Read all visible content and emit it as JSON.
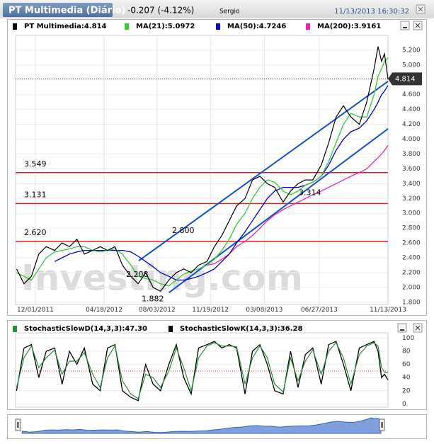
{
  "header": {
    "title": "PT Multimedia (Diário)",
    "change": "-0.207 (-4.12%)",
    "user": "Sergio",
    "timestamp": "11/13/2013 16:30:32"
  },
  "watermark": "Investing.com",
  "chart_data": [
    {
      "type": "line",
      "x": [
        "10/24/2011",
        "11/08/2011",
        "11/23/2011",
        "12/08/2011",
        "12/23/2011",
        "01/09/2012",
        "01/24/2012",
        "02/08/2012",
        "02/23/2012",
        "03/09/2012",
        "03/26/2012",
        "04/10/2012",
        "04/25/2012",
        "05/10/2012",
        "05/25/2012",
        "06/11/2012",
        "06/26/2012",
        "07/11/2012",
        "07/26/2012",
        "08/10/2012",
        "08/27/2012",
        "09/11/2012",
        "09/26/2012",
        "10/11/2012",
        "10/26/2012",
        "11/12/2012",
        "11/27/2012",
        "12/12/2012",
        "12/27/2012",
        "01/11/2013",
        "01/28/2013",
        "02/12/2013",
        "02/27/2013",
        "03/14/2013",
        "03/29/2013",
        "04/15/2013",
        "04/30/2013",
        "05/15/2013",
        "05/30/2013",
        "06/14/2013",
        "07/01/2013",
        "07/16/2013",
        "07/31/2013",
        "08/15/2013",
        "08/30/2013",
        "09/16/2013",
        "10/01/2013",
        "10/16/2013",
        "10/24/2013",
        "10/31/2013",
        "11/06/2013",
        "11/13/2013"
      ],
      "series": [
        {
          "name": "PT Multimedia:4.814",
          "color": "#000000",
          "values": [
            2.25,
            2.05,
            2.15,
            2.45,
            2.55,
            2.5,
            2.6,
            2.55,
            2.65,
            2.45,
            2.5,
            2.55,
            2.5,
            2.55,
            2.3,
            2.15,
            2.05,
            2.2,
            2.0,
            1.95,
            2.1,
            2.2,
            2.25,
            2.2,
            2.3,
            2.35,
            2.55,
            2.7,
            2.9,
            3.1,
            3.2,
            3.45,
            3.5,
            3.4,
            3.35,
            3.15,
            3.3,
            3.4,
            3.45,
            3.45,
            3.65,
            3.95,
            4.3,
            4.45,
            4.3,
            4.2,
            4.5,
            4.95,
            5.25,
            5.05,
            5.15,
            4.814
          ]
        },
        {
          "name": "MA(21):5.0972",
          "color": "#33cc33",
          "values": [
            2.2,
            2.15,
            2.1,
            2.25,
            2.4,
            2.48,
            2.5,
            2.52,
            2.55,
            2.55,
            2.5,
            2.48,
            2.5,
            2.52,
            2.45,
            2.3,
            2.15,
            2.12,
            2.1,
            2.05,
            2.02,
            2.1,
            2.18,
            2.22,
            2.25,
            2.3,
            2.38,
            2.5,
            2.65,
            2.85,
            3.0,
            3.2,
            3.35,
            3.45,
            3.42,
            3.3,
            3.25,
            3.3,
            3.38,
            3.42,
            3.5,
            3.7,
            3.95,
            4.2,
            4.35,
            4.3,
            4.3,
            4.6,
            4.85,
            4.95,
            5.05,
            5.0972
          ]
        },
        {
          "name": "MA(50):4.7246",
          "color": "#0000cc",
          "values": [
            null,
            null,
            null,
            null,
            null,
            2.35,
            2.4,
            2.45,
            2.48,
            2.5,
            2.5,
            2.5,
            2.5,
            2.5,
            2.5,
            2.48,
            2.42,
            2.35,
            2.28,
            2.2,
            2.15,
            2.1,
            2.1,
            2.12,
            2.15,
            2.2,
            2.25,
            2.35,
            2.45,
            2.6,
            2.75,
            2.9,
            3.05,
            3.2,
            3.3,
            3.35,
            3.35,
            3.35,
            3.38,
            3.42,
            3.5,
            3.65,
            3.85,
            4.0,
            4.1,
            4.15,
            4.25,
            4.4,
            4.5,
            4.6,
            4.65,
            4.7246
          ]
        },
        {
          "name": "MA(200):3.9161",
          "color": "#ee22aa",
          "values": [
            null,
            null,
            null,
            null,
            null,
            null,
            null,
            null,
            null,
            null,
            null,
            null,
            null,
            null,
            null,
            null,
            null,
            null,
            null,
            null,
            null,
            null,
            null,
            null,
            null,
            2.3,
            2.32,
            2.38,
            2.45,
            2.55,
            2.62,
            2.7,
            2.8,
            2.9,
            2.98,
            3.05,
            3.1,
            3.15,
            3.2,
            3.25,
            3.3,
            3.35,
            3.4,
            3.45,
            3.5,
            3.55,
            3.6,
            3.7,
            3.75,
            3.8,
            3.85,
            3.9161
          ]
        }
      ],
      "xlim": [
        "10/22/2011",
        "11/13/2013"
      ],
      "xticks": [
        "12/01/2011",
        "04/18/2012",
        "08/03/2012",
        "11/19/2012",
        "03/08/2013",
        "06/27/2013",
        "11/13/2013"
      ],
      "ylim": [
        1.77,
        5.4
      ],
      "yticks": [
        {
          "value": 1.8,
          "label": "1.800"
        },
        {
          "value": 2.0,
          "label": "2.000"
        },
        {
          "value": 2.2,
          "label": "2.200"
        },
        {
          "value": 2.4,
          "label": "2.400"
        },
        {
          "value": 2.6,
          "label": "2.600"
        },
        {
          "value": 2.8,
          "label": "2.800"
        },
        {
          "value": 3.0,
          "label": "3.000"
        },
        {
          "value": 3.2,
          "label": "3.200"
        },
        {
          "value": 3.4,
          "label": "3.400"
        },
        {
          "value": 3.6,
          "label": "3.600"
        },
        {
          "value": 3.8,
          "label": "3.800"
        },
        {
          "value": 4.0,
          "label": "4.000"
        },
        {
          "value": 4.2,
          "label": "4.200"
        },
        {
          "value": 4.4,
          "label": "4.400"
        },
        {
          "value": 4.6,
          "label": "4.600"
        },
        {
          "value": 4.8,
          "label": "4.800"
        },
        {
          "value": 5.0,
          "label": "5.000"
        },
        {
          "value": 5.2,
          "label": "5.200"
        }
      ],
      "grid": true,
      "levels": [
        {
          "value": 3.549,
          "label": "3.549",
          "color": "#e02020"
        },
        {
          "value": 3.131,
          "label": "3.131",
          "color": "#e02020"
        },
        {
          "value": 2.62,
          "label": "2.620",
          "color": "#e02020"
        }
      ],
      "annotations": [
        {
          "value": 2.8,
          "label": "2.800"
        },
        {
          "value": 3.314,
          "label": "3.314"
        },
        {
          "value": 1.882,
          "label": "1.882"
        },
        {
          "value": 2.208,
          "label": "2.208"
        }
      ],
      "trendlines": [
        {
          "color": "#1050d0",
          "start": [
            "06/27/2012",
            2.36
          ],
          "end": [
            "11/13/2013",
            4.78
          ]
        },
        {
          "color": "#1050d0",
          "start": [
            "08/27/2012",
            1.93
          ],
          "end": [
            "11/13/2013",
            4.14
          ]
        }
      ],
      "last_price": {
        "value": 4.814,
        "label": "4.814"
      }
    },
    {
      "type": "line",
      "x": [
        "10/24/2011",
        "11/08/2011",
        "11/23/2011",
        "12/08/2011",
        "12/23/2011",
        "01/09/2012",
        "01/24/2012",
        "02/08/2012",
        "02/23/2012",
        "03/09/2012",
        "03/26/2012",
        "04/10/2012",
        "04/25/2012",
        "05/10/2012",
        "05/25/2012",
        "06/11/2012",
        "06/26/2012",
        "07/11/2012",
        "07/26/2012",
        "08/10/2012",
        "08/27/2012",
        "09/11/2012",
        "09/26/2012",
        "10/11/2012",
        "10/26/2012",
        "11/12/2012",
        "11/27/2012",
        "12/12/2012",
        "12/27/2012",
        "01/11/2013",
        "01/28/2013",
        "02/12/2013",
        "02/27/2013",
        "03/14/2013",
        "03/29/2013",
        "04/15/2013",
        "04/30/2013",
        "05/15/2013",
        "05/30/2013",
        "06/14/2013",
        "07/01/2013",
        "07/16/2013",
        "07/31/2013",
        "08/15/2013",
        "08/30/2013",
        "09/16/2013",
        "10/01/2013",
        "10/16/2013",
        "10/24/2013",
        "10/31/2013",
        "11/06/2013",
        "11/13/2013"
      ],
      "series": [
        {
          "name": "StochasticSlowD(14,3,3):47.30",
          "color": "#2e8b3e",
          "values": [
            25,
            70,
            88,
            55,
            70,
            82,
            45,
            65,
            65,
            78,
            45,
            25,
            70,
            88,
            35,
            15,
            8,
            45,
            40,
            25,
            50,
            85,
            55,
            20,
            70,
            88,
            93,
            88,
            88,
            87,
            30,
            70,
            88,
            70,
            30,
            18,
            70,
            35,
            65,
            82,
            45,
            80,
            93,
            70,
            30,
            75,
            88,
            93,
            88,
            55,
            48,
            47.3
          ]
        },
        {
          "name": "StochasticSlowK(14,3,3):36.28",
          "color": "#000000",
          "values": [
            20,
            85,
            90,
            40,
            80,
            85,
            30,
            80,
            60,
            85,
            30,
            20,
            85,
            90,
            20,
            10,
            5,
            60,
            30,
            20,
            60,
            90,
            40,
            15,
            85,
            90,
            95,
            85,
            90,
            85,
            15,
            80,
            90,
            60,
            20,
            15,
            80,
            25,
            75,
            85,
            30,
            90,
            95,
            60,
            20,
            85,
            90,
            95,
            80,
            40,
            45,
            36.28
          ]
        }
      ],
      "xlim": [
        "10/22/2011",
        "11/13/2013"
      ],
      "ylim": [
        -5,
        108
      ],
      "yticks": [
        0,
        20,
        40,
        60,
        80,
        100
      ],
      "grid": true,
      "reference_line": 50
    }
  ]
}
